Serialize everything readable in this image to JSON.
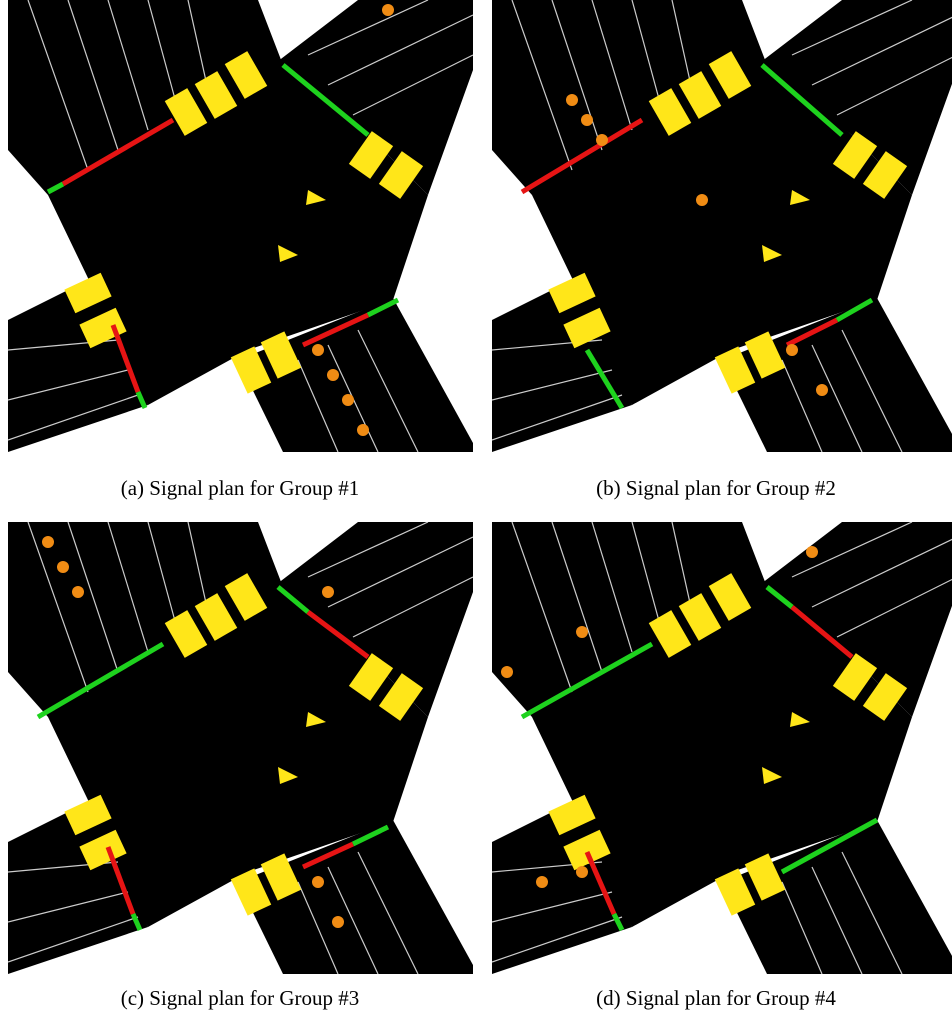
{
  "panels": [
    {
      "caption": "(a) Signal plan for Group #1"
    },
    {
      "caption": "(b) Signal plan for Group #2"
    },
    {
      "caption": "(c) Signal plan for Group #3"
    },
    {
      "caption": "(d) Signal plan for Group #4"
    }
  ]
}
